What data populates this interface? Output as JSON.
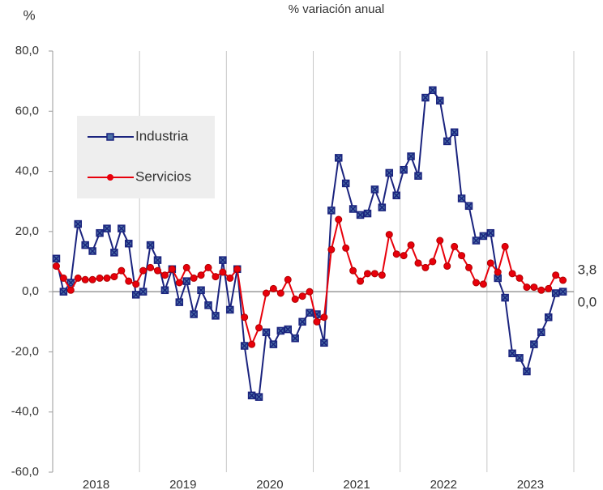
{
  "chart_data": {
    "type": "line",
    "title": "% variación anual",
    "ylabel": "%",
    "categories": [
      null,
      null,
      null,
      null,
      null,
      null,
      null,
      null,
      null,
      null,
      null,
      null,
      null,
      null,
      null,
      null,
      null,
      null,
      null,
      null,
      null,
      null,
      null,
      null,
      null,
      null,
      null,
      null,
      null,
      null,
      null,
      null,
      null,
      null,
      null,
      null,
      null,
      null,
      null,
      null,
      null,
      null,
      null,
      null,
      null,
      null,
      null,
      null,
      null,
      null,
      null,
      null,
      null,
      null,
      null,
      null,
      null,
      null,
      null,
      null,
      null,
      null,
      null,
      null,
      null,
      null,
      null,
      null,
      null,
      null,
      null
    ],
    "year_labels": [
      "2018",
      "2019",
      "2020",
      "2021",
      "2022",
      "2023"
    ],
    "ylim": [
      -60,
      80
    ],
    "yticks": [
      {
        "value": -60,
        "label": "-60,0"
      },
      {
        "value": -40,
        "label": "-40,0"
      },
      {
        "value": -20,
        "label": "-20,0"
      },
      {
        "value": 0,
        "label": "0,0"
      },
      {
        "value": 20,
        "label": "20,0"
      },
      {
        "value": 40,
        "label": "40,0"
      },
      {
        "value": 60,
        "label": "60,0"
      },
      {
        "value": 80,
        "label": "80,0"
      }
    ],
    "legend": "upper left",
    "series": [
      {
        "name": "Industria",
        "color": "#1a237e",
        "marker": "square",
        "values": [
          11,
          0,
          3,
          22.5,
          15.5,
          13.5,
          19.5,
          21,
          13,
          21,
          16,
          -1,
          0,
          15.5,
          10.5,
          0.5,
          7.5,
          -3.5,
          3.5,
          -7.5,
          0.5,
          -4.5,
          -8,
          10.5,
          -6,
          7.5,
          -18,
          -34.5,
          -35,
          -13.5,
          -17.5,
          -13,
          -12.5,
          -15.5,
          -10,
          -7,
          -7.5,
          -17,
          27,
          44.5,
          36,
          27.5,
          25.5,
          26,
          34,
          28,
          39.5,
          32,
          40.5,
          45,
          38.5,
          64.5,
          67,
          63.5,
          50,
          53,
          31,
          28.5,
          17,
          18.5,
          19.5,
          4.5,
          -2,
          -20.5,
          -22,
          -26.5,
          -17.5,
          -13.5,
          -8.5,
          -0.5,
          0
        ],
        "last_label": "0,0"
      },
      {
        "name": "Servicios",
        "color": "#e8000b",
        "marker": "circle",
        "values": [
          8.5,
          4.5,
          0.5,
          4.5,
          4,
          4,
          4.5,
          4.5,
          5,
          7,
          3.5,
          2.5,
          7,
          8,
          7,
          5.5,
          7.5,
          3,
          8,
          4.5,
          5.5,
          8,
          5,
          6.5,
          4.5,
          7.5,
          -8.5,
          -17.5,
          -12,
          -0.5,
          1,
          -0.5,
          4,
          -2.5,
          -1.5,
          0,
          -10,
          -8.5,
          14,
          24,
          14.5,
          7,
          3.5,
          6,
          6,
          5.5,
          19,
          12.5,
          12,
          15.5,
          9.5,
          8,
          10,
          17,
          8.5,
          15,
          12,
          8,
          3,
          2.5,
          9.5,
          6.5,
          15,
          6,
          4.5,
          1.5,
          1.5,
          0.5,
          1,
          5.5,
          3.8
        ],
        "last_label": "3,8"
      }
    ]
  }
}
